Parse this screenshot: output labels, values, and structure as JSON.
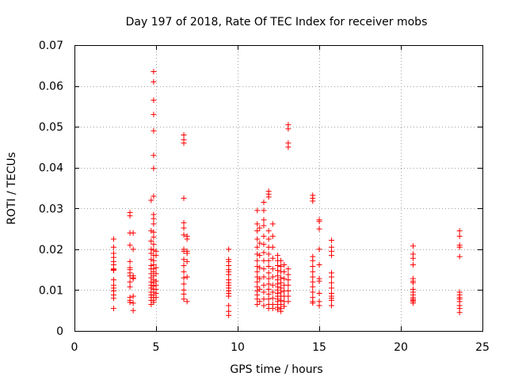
{
  "chart_data": {
    "type": "scatter",
    "title": "Day 197 of 2018, Rate Of TEC Index for receiver mobs",
    "xlabel": "GPS time / hours",
    "ylabel": "ROTI / TECUs",
    "xlim": [
      0,
      25
    ],
    "ylim": [
      0,
      0.07
    ],
    "xticks": [
      "0",
      "5",
      "10",
      "15",
      "20",
      "25"
    ],
    "yticks": [
      "0",
      "0.01",
      "0.02",
      "0.03",
      "0.04",
      "0.05",
      "0.06",
      "0.07"
    ],
    "grid": true,
    "marker": "plus",
    "color": "#ff0000",
    "series": [
      {
        "points": [
          [
            2.4,
            0.0225
          ],
          [
            2.4,
            0.0205
          ],
          [
            2.4,
            0.019
          ],
          [
            2.4,
            0.018
          ],
          [
            2.4,
            0.017
          ],
          [
            2.4,
            0.0162
          ],
          [
            2.4,
            0.0152
          ],
          [
            2.4,
            0.015
          ],
          [
            2.4,
            0.0148
          ],
          [
            2.4,
            0.0125
          ],
          [
            2.4,
            0.0112
          ],
          [
            2.4,
            0.0105
          ],
          [
            2.4,
            0.0098
          ],
          [
            2.4,
            0.0088
          ],
          [
            2.4,
            0.008
          ],
          [
            2.4,
            0.0055
          ],
          [
            3.4,
            0.029
          ],
          [
            3.4,
            0.0282
          ],
          [
            3.4,
            0.024
          ],
          [
            3.4,
            0.021
          ],
          [
            3.4,
            0.017
          ],
          [
            3.4,
            0.0155
          ],
          [
            3.4,
            0.015
          ],
          [
            3.4,
            0.0142
          ],
          [
            3.4,
            0.0135
          ],
          [
            3.4,
            0.012
          ],
          [
            3.4,
            0.0108
          ],
          [
            3.4,
            0.0082
          ],
          [
            3.4,
            0.0075
          ],
          [
            3.4,
            0.007
          ],
          [
            3.6,
            0.024
          ],
          [
            3.6,
            0.02
          ],
          [
            3.6,
            0.0135
          ],
          [
            3.6,
            0.013
          ],
          [
            3.6,
            0.0128
          ],
          [
            3.6,
            0.0085
          ],
          [
            3.6,
            0.0068
          ],
          [
            3.6,
            0.005
          ],
          [
            4.7,
            0.032
          ],
          [
            4.7,
            0.0245
          ],
          [
            4.7,
            0.022
          ],
          [
            4.7,
            0.02
          ],
          [
            4.7,
            0.019
          ],
          [
            4.7,
            0.0175
          ],
          [
            4.7,
            0.016
          ],
          [
            4.7,
            0.0152
          ],
          [
            4.7,
            0.014
          ],
          [
            4.7,
            0.013
          ],
          [
            4.7,
            0.012
          ],
          [
            4.7,
            0.0112
          ],
          [
            4.7,
            0.0105
          ],
          [
            4.7,
            0.0095
          ],
          [
            4.7,
            0.0088
          ],
          [
            4.7,
            0.0082
          ],
          [
            4.7,
            0.0075
          ],
          [
            4.7,
            0.0065
          ],
          [
            4.85,
            0.0635
          ],
          [
            4.85,
            0.061
          ],
          [
            4.85,
            0.0565
          ],
          [
            4.85,
            0.053
          ],
          [
            4.85,
            0.049
          ],
          [
            4.85,
            0.043
          ],
          [
            4.85,
            0.0398
          ],
          [
            4.85,
            0.033
          ],
          [
            4.85,
            0.0285
          ],
          [
            4.85,
            0.0275
          ],
          [
            4.85,
            0.0262
          ],
          [
            4.85,
            0.0242
          ],
          [
            4.85,
            0.023
          ],
          [
            4.85,
            0.0212
          ],
          [
            4.85,
            0.0198
          ],
          [
            4.85,
            0.0185
          ],
          [
            4.85,
            0.0172
          ],
          [
            4.85,
            0.0162
          ],
          [
            4.85,
            0.0152
          ],
          [
            4.85,
            0.0145
          ],
          [
            4.85,
            0.0135
          ],
          [
            4.85,
            0.0125
          ],
          [
            4.85,
            0.0118
          ],
          [
            4.85,
            0.011
          ],
          [
            4.85,
            0.0102
          ],
          [
            4.85,
            0.0095
          ],
          [
            4.85,
            0.0088
          ],
          [
            4.85,
            0.0082
          ],
          [
            4.85,
            0.0075
          ],
          [
            4.85,
            0.007
          ],
          [
            5.0,
            0.0195
          ],
          [
            5.0,
            0.0185
          ],
          [
            5.0,
            0.0155
          ],
          [
            5.0,
            0.014
          ],
          [
            5.0,
            0.0122
          ],
          [
            5.0,
            0.0112
          ],
          [
            5.0,
            0.0102
          ],
          [
            5.0,
            0.0092
          ],
          [
            5.0,
            0.0082
          ],
          [
            6.7,
            0.048
          ],
          [
            6.7,
            0.0468
          ],
          [
            6.7,
            0.046
          ],
          [
            6.7,
            0.0325
          ],
          [
            6.7,
            0.0265
          ],
          [
            6.7,
            0.0252
          ],
          [
            6.7,
            0.0235
          ],
          [
            6.7,
            0.02
          ],
          [
            6.7,
            0.0195
          ],
          [
            6.7,
            0.0175
          ],
          [
            6.7,
            0.016
          ],
          [
            6.7,
            0.0145
          ],
          [
            6.7,
            0.013
          ],
          [
            6.7,
            0.0115
          ],
          [
            6.7,
            0.01
          ],
          [
            6.7,
            0.009
          ],
          [
            6.7,
            0.0078
          ],
          [
            6.9,
            0.0232
          ],
          [
            6.9,
            0.0225
          ],
          [
            6.9,
            0.0195
          ],
          [
            6.9,
            0.019
          ],
          [
            6.9,
            0.017
          ],
          [
            6.9,
            0.0132
          ],
          [
            6.9,
            0.0072
          ],
          [
            9.45,
            0.02
          ],
          [
            9.45,
            0.0175
          ],
          [
            9.45,
            0.017
          ],
          [
            9.45,
            0.016
          ],
          [
            9.45,
            0.015
          ],
          [
            9.45,
            0.0145
          ],
          [
            9.45,
            0.0138
          ],
          [
            9.45,
            0.0125
          ],
          [
            9.45,
            0.0118
          ],
          [
            9.45,
            0.0112
          ],
          [
            9.45,
            0.0105
          ],
          [
            9.45,
            0.0098
          ],
          [
            9.45,
            0.0092
          ],
          [
            9.45,
            0.0085
          ],
          [
            9.45,
            0.0062
          ],
          [
            9.45,
            0.0048
          ],
          [
            9.45,
            0.0038
          ],
          [
            11.2,
            0.0295
          ],
          [
            11.2,
            0.0262
          ],
          [
            11.2,
            0.0245
          ],
          [
            11.2,
            0.0225
          ],
          [
            11.2,
            0.0205
          ],
          [
            11.2,
            0.0188
          ],
          [
            11.2,
            0.0172
          ],
          [
            11.2,
            0.0158
          ],
          [
            11.2,
            0.0145
          ],
          [
            11.2,
            0.0132
          ],
          [
            11.2,
            0.012
          ],
          [
            11.2,
            0.0108
          ],
          [
            11.2,
            0.0098
          ],
          [
            11.2,
            0.0088
          ],
          [
            11.2,
            0.0078
          ],
          [
            11.2,
            0.0065
          ],
          [
            11.35,
            0.0252
          ],
          [
            11.35,
            0.0215
          ],
          [
            11.35,
            0.0185
          ],
          [
            11.35,
            0.0155
          ],
          [
            11.35,
            0.0128
          ],
          [
            11.35,
            0.0102
          ],
          [
            11.35,
            0.0072
          ],
          [
            11.6,
            0.0315
          ],
          [
            11.6,
            0.0295
          ],
          [
            11.6,
            0.0272
          ],
          [
            11.6,
            0.0258
          ],
          [
            11.6,
            0.0232
          ],
          [
            11.6,
            0.0212
          ],
          [
            11.6,
            0.0192
          ],
          [
            11.6,
            0.0172
          ],
          [
            11.6,
            0.0152
          ],
          [
            11.6,
            0.0132
          ],
          [
            11.6,
            0.0112
          ],
          [
            11.6,
            0.0095
          ],
          [
            11.6,
            0.0078
          ],
          [
            11.6,
            0.0062
          ],
          [
            11.9,
            0.0342
          ],
          [
            11.9,
            0.0335
          ],
          [
            11.9,
            0.0328
          ],
          [
            11.9,
            0.0245
          ],
          [
            11.9,
            0.0225
          ],
          [
            11.9,
            0.0205
          ],
          [
            11.9,
            0.0188
          ],
          [
            11.9,
            0.0172
          ],
          [
            11.9,
            0.0158
          ],
          [
            11.9,
            0.0142
          ],
          [
            11.9,
            0.0128
          ],
          [
            11.9,
            0.0115
          ],
          [
            11.9,
            0.0102
          ],
          [
            11.9,
            0.009
          ],
          [
            11.9,
            0.0078
          ],
          [
            11.9,
            0.0065
          ],
          [
            11.9,
            0.0055
          ],
          [
            12.15,
            0.0262
          ],
          [
            12.15,
            0.0232
          ],
          [
            12.15,
            0.0205
          ],
          [
            12.15,
            0.0178
          ],
          [
            12.15,
            0.0152
          ],
          [
            12.15,
            0.0132
          ],
          [
            12.15,
            0.0112
          ],
          [
            12.15,
            0.0095
          ],
          [
            12.15,
            0.008
          ],
          [
            12.15,
            0.0065
          ],
          [
            12.15,
            0.0055
          ],
          [
            12.45,
            0.0185
          ],
          [
            12.45,
            0.0172
          ],
          [
            12.45,
            0.016
          ],
          [
            12.45,
            0.0148
          ],
          [
            12.45,
            0.0135
          ],
          [
            12.45,
            0.0125
          ],
          [
            12.45,
            0.0115
          ],
          [
            12.45,
            0.0108
          ],
          [
            12.45,
            0.01
          ],
          [
            12.45,
            0.0092
          ],
          [
            12.45,
            0.0085
          ],
          [
            12.45,
            0.0078
          ],
          [
            12.45,
            0.0072
          ],
          [
            12.45,
            0.0065
          ],
          [
            12.45,
            0.0058
          ],
          [
            12.45,
            0.0052
          ],
          [
            12.65,
            0.0172
          ],
          [
            12.65,
            0.0158
          ],
          [
            12.65,
            0.0145
          ],
          [
            12.65,
            0.013
          ],
          [
            12.65,
            0.0118
          ],
          [
            12.65,
            0.0105
          ],
          [
            12.65,
            0.0095
          ],
          [
            12.65,
            0.0085
          ],
          [
            12.65,
            0.0075
          ],
          [
            12.65,
            0.0065
          ],
          [
            12.65,
            0.0055
          ],
          [
            12.65,
            0.0048
          ],
          [
            12.85,
            0.0162
          ],
          [
            12.85,
            0.0145
          ],
          [
            12.85,
            0.0128
          ],
          [
            12.85,
            0.0112
          ],
          [
            12.85,
            0.0098
          ],
          [
            12.85,
            0.0085
          ],
          [
            12.85,
            0.0072
          ],
          [
            12.85,
            0.006
          ],
          [
            13.1,
            0.0505
          ],
          [
            13.1,
            0.0495
          ],
          [
            13.1,
            0.046
          ],
          [
            13.1,
            0.045
          ],
          [
            13.1,
            0.0152
          ],
          [
            13.1,
            0.0138
          ],
          [
            13.1,
            0.0125
          ],
          [
            13.1,
            0.0112
          ],
          [
            13.1,
            0.0098
          ],
          [
            13.1,
            0.0085
          ],
          [
            13.1,
            0.0072
          ],
          [
            14.6,
            0.0332
          ],
          [
            14.6,
            0.0325
          ],
          [
            14.6,
            0.0318
          ],
          [
            14.6,
            0.0182
          ],
          [
            14.6,
            0.0172
          ],
          [
            14.6,
            0.0158
          ],
          [
            14.6,
            0.0145
          ],
          [
            14.6,
            0.0132
          ],
          [
            14.6,
            0.012
          ],
          [
            14.6,
            0.0108
          ],
          [
            14.6,
            0.0095
          ],
          [
            14.6,
            0.0082
          ],
          [
            14.6,
            0.0072
          ],
          [
            14.6,
            0.0068
          ],
          [
            15.0,
            0.0272
          ],
          [
            15.0,
            0.0268
          ],
          [
            15.0,
            0.025
          ],
          [
            15.0,
            0.02
          ],
          [
            15.0,
            0.0162
          ],
          [
            15.0,
            0.0128
          ],
          [
            15.0,
            0.0122
          ],
          [
            15.0,
            0.0092
          ],
          [
            15.0,
            0.0072
          ],
          [
            15.0,
            0.0062
          ],
          [
            15.75,
            0.0222
          ],
          [
            15.75,
            0.0205
          ],
          [
            15.75,
            0.0195
          ],
          [
            15.75,
            0.0185
          ],
          [
            15.75,
            0.0142
          ],
          [
            15.75,
            0.0132
          ],
          [
            15.75,
            0.0118
          ],
          [
            15.75,
            0.0105
          ],
          [
            15.75,
            0.0092
          ],
          [
            15.75,
            0.0085
          ],
          [
            15.75,
            0.008
          ],
          [
            15.75,
            0.0075
          ],
          [
            15.75,
            0.0062
          ],
          [
            20.75,
            0.0208
          ],
          [
            20.75,
            0.0188
          ],
          [
            20.75,
            0.0178
          ],
          [
            20.75,
            0.0162
          ],
          [
            20.75,
            0.0128
          ],
          [
            20.75,
            0.0122
          ],
          [
            20.75,
            0.0118
          ],
          [
            20.75,
            0.0102
          ],
          [
            20.75,
            0.0095
          ],
          [
            20.75,
            0.0088
          ],
          [
            20.75,
            0.0082
          ],
          [
            20.75,
            0.0078
          ],
          [
            20.75,
            0.0075
          ],
          [
            20.75,
            0.0072
          ],
          [
            20.75,
            0.0068
          ],
          [
            23.6,
            0.0245
          ],
          [
            23.6,
            0.0232
          ],
          [
            23.6,
            0.021
          ],
          [
            23.6,
            0.0205
          ],
          [
            23.6,
            0.0182
          ],
          [
            23.6,
            0.0095
          ],
          [
            23.6,
            0.0088
          ],
          [
            23.6,
            0.0082
          ],
          [
            23.6,
            0.0078
          ],
          [
            23.6,
            0.0072
          ],
          [
            23.6,
            0.0062
          ],
          [
            23.6,
            0.0055
          ],
          [
            23.6,
            0.0045
          ]
        ]
      }
    ]
  }
}
